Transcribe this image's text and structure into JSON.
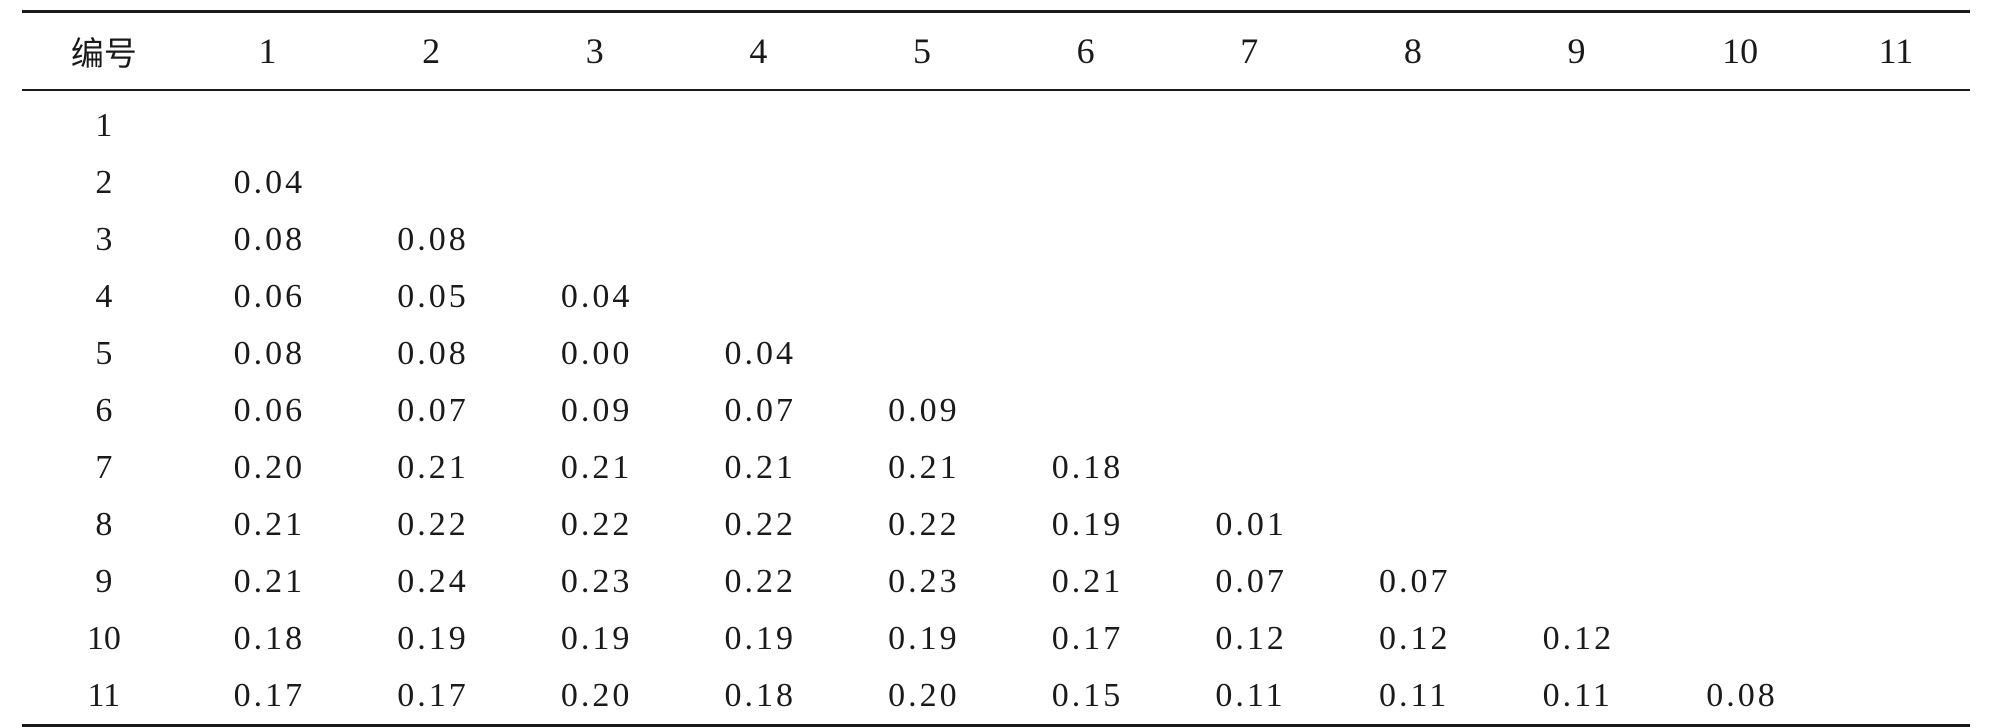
{
  "table": {
    "header_label": "编号",
    "columns": [
      "1",
      "2",
      "3",
      "4",
      "5",
      "6",
      "7",
      "8",
      "9",
      "10",
      "11"
    ],
    "rows": [
      {
        "id": "1",
        "values": [
          "",
          "",
          "",
          "",
          "",
          "",
          "",
          "",
          "",
          "",
          ""
        ]
      },
      {
        "id": "2",
        "values": [
          "0.04",
          "",
          "",
          "",
          "",
          "",
          "",
          "",
          "",
          "",
          ""
        ]
      },
      {
        "id": "3",
        "values": [
          "0.08",
          "0.08",
          "",
          "",
          "",
          "",
          "",
          "",
          "",
          "",
          ""
        ]
      },
      {
        "id": "4",
        "values": [
          "0.06",
          "0.05",
          "0.04",
          "",
          "",
          "",
          "",
          "",
          "",
          "",
          ""
        ]
      },
      {
        "id": "5",
        "values": [
          "0.08",
          "0.08",
          "0.00",
          "0.04",
          "",
          "",
          "",
          "",
          "",
          "",
          ""
        ]
      },
      {
        "id": "6",
        "values": [
          "0.06",
          "0.07",
          "0.09",
          "0.07",
          "0.09",
          "",
          "",
          "",
          "",
          "",
          ""
        ]
      },
      {
        "id": "7",
        "values": [
          "0.20",
          "0.21",
          "0.21",
          "0.21",
          "0.21",
          "0.18",
          "",
          "",
          "",
          "",
          ""
        ]
      },
      {
        "id": "8",
        "values": [
          "0.21",
          "0.22",
          "0.22",
          "0.22",
          "0.22",
          "0.19",
          "0.01",
          "",
          "",
          "",
          ""
        ]
      },
      {
        "id": "9",
        "values": [
          "0.21",
          "0.24",
          "0.23",
          "0.22",
          "0.23",
          "0.21",
          "0.07",
          "0.07",
          "",
          "",
          ""
        ]
      },
      {
        "id": "10",
        "values": [
          "0.18",
          "0.19",
          "0.19",
          "0.19",
          "0.19",
          "0.17",
          "0.12",
          "0.12",
          "0.12",
          "",
          ""
        ]
      },
      {
        "id": "11",
        "values": [
          "0.17",
          "0.17",
          "0.20",
          "0.18",
          "0.20",
          "0.15",
          "0.11",
          "0.11",
          "0.11",
          "0.08",
          ""
        ]
      }
    ]
  }
}
